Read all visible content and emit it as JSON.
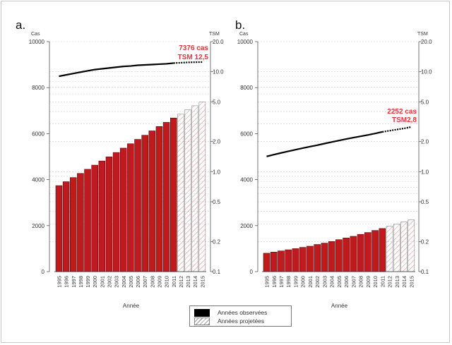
{
  "chart_data": [
    {
      "panel": "a.",
      "type": "bar",
      "categories": [
        "1995",
        "1996",
        "1997",
        "1998",
        "1999",
        "2000",
        "2001",
        "2002",
        "2003",
        "2004",
        "2005",
        "2006",
        "2007",
        "2008",
        "2009",
        "2010",
        "2011",
        "2012",
        "2013",
        "2014",
        "2015"
      ],
      "observed_until": "2011",
      "values": [
        3740,
        3910,
        4090,
        4270,
        4450,
        4630,
        4810,
        4990,
        5180,
        5370,
        5560,
        5750,
        5930,
        6120,
        6310,
        6490,
        6680,
        6845,
        7040,
        7213,
        7376
      ],
      "tsm": [
        9.0,
        9.3,
        9.6,
        9.9,
        10.2,
        10.5,
        10.7,
        10.9,
        11.1,
        11.3,
        11.4,
        11.6,
        11.7,
        11.8,
        11.9,
        12.0,
        12.2,
        12.3,
        12.4,
        12.45,
        12.5
      ],
      "xlabel": "Année",
      "ylabel_left": "Cas",
      "ylabel_right": "TSM",
      "ylim_left": [
        0,
        10000
      ],
      "yticks_left": [
        "0",
        "2000",
        "4000",
        "6000",
        "8000",
        "10000"
      ],
      "ylim_right": [
        0.1,
        20
      ],
      "right_scale": "log",
      "yticks_right": [
        "0.1",
        "0.2",
        "0.5",
        "1.0",
        "2.0",
        "5.0",
        "10.0",
        "20.0"
      ],
      "grid_right": [
        0.2,
        0.3,
        0.4,
        0.5,
        0.6,
        0.7,
        0.8,
        0.9,
        1,
        2,
        3,
        4,
        5,
        6,
        7,
        8,
        9,
        10,
        20
      ],
      "annotation": [
        "7376 cas",
        "TSM 12,5"
      ]
    },
    {
      "panel": "b.",
      "type": "bar",
      "categories": [
        "1995",
        "1996",
        "1997",
        "1998",
        "1999",
        "2000",
        "2001",
        "2002",
        "2003",
        "2004",
        "2005",
        "2006",
        "2007",
        "2008",
        "2009",
        "2010",
        "2011",
        "2012",
        "2013",
        "2014",
        "2015"
      ],
      "observed_until": "2011",
      "values": [
        800,
        850,
        900,
        950,
        1000,
        1055,
        1105,
        1180,
        1240,
        1310,
        1390,
        1465,
        1535,
        1620,
        1700,
        1790,
        1875,
        1975,
        2060,
        2160,
        2252
      ],
      "tsm": [
        1.42,
        1.48,
        1.54,
        1.6,
        1.66,
        1.72,
        1.78,
        1.84,
        1.91,
        1.98,
        2.05,
        2.12,
        2.19,
        2.26,
        2.33,
        2.41,
        2.5,
        2.57,
        2.64,
        2.71,
        2.8
      ],
      "xlabel": "Année",
      "ylabel_left": "Cas",
      "ylabel_right": "TSM",
      "ylim_left": [
        0,
        10000
      ],
      "yticks_left": [
        "0",
        "2000",
        "4000",
        "6000",
        "8000",
        "10000"
      ],
      "ylim_right": [
        0.1,
        20
      ],
      "right_scale": "log",
      "yticks_right": [
        "0.1",
        "0.2",
        "0.5",
        "1.0",
        "2.0",
        "5.0",
        "10.0",
        "20.0"
      ],
      "grid_right": [
        0.2,
        0.3,
        0.4,
        0.5,
        0.6,
        0.7,
        0.8,
        0.9,
        1,
        2,
        3,
        4,
        5,
        6,
        7,
        8,
        9,
        10,
        20
      ],
      "annotation": [
        "2252 cas",
        "TSM2,8"
      ]
    }
  ],
  "legend": {
    "observed": "Années observées",
    "projected": "Années projetées"
  },
  "colors": {
    "observed_bar": "#c0191e",
    "projected_hatch": "#d9848a",
    "annotation": "#e8323a",
    "line": "#000000"
  }
}
